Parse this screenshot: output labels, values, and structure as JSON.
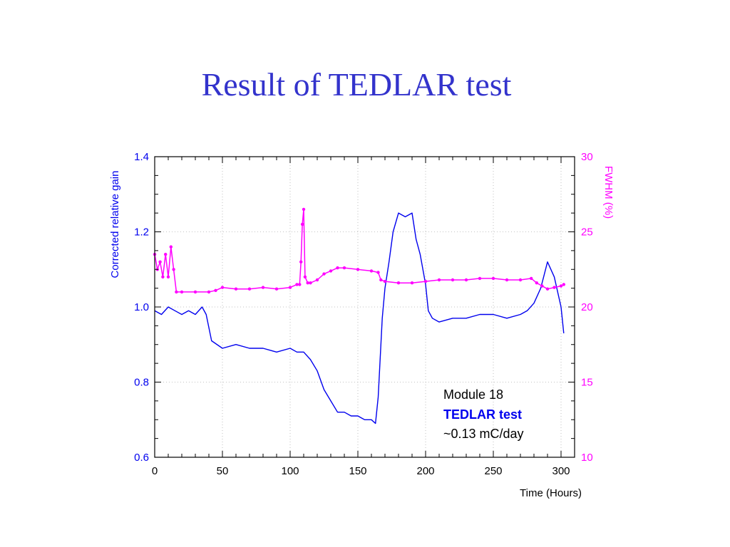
{
  "page": {
    "title": "Result of TEDLAR test"
  },
  "colors": {
    "gain": "#0000ee",
    "fwhm": "#ff00ff",
    "title": "#3333cc",
    "axis": "#000000",
    "grid": "#b0b0b0"
  },
  "chart_data": {
    "type": "line",
    "title": "",
    "xlabel": "Time (Hours)",
    "ylabel_left": "Corrected relative gain",
    "ylabel_right": "FWHM (%)",
    "xlim": [
      0,
      310
    ],
    "ylim_left": [
      0.6,
      1.4
    ],
    "ylim_right": [
      10,
      30
    ],
    "x_ticks": [
      0,
      50,
      100,
      150,
      200,
      250,
      300
    ],
    "y_ticks_left": [
      "0.6",
      "0.8",
      "1.0",
      "1.2",
      "1.4"
    ],
    "y_ticks_right": [
      "10",
      "15",
      "20",
      "25",
      "30"
    ],
    "grid": true,
    "annotation": {
      "line1": "Module 18",
      "line2": "TEDLAR test",
      "line3": "~0.13 mC/day"
    },
    "series": [
      {
        "axis": "left",
        "color": "#0000ee",
        "x": [
          0,
          5,
          10,
          15,
          20,
          25,
          30,
          35,
          38,
          42,
          50,
          60,
          70,
          80,
          90,
          100,
          105,
          110,
          115,
          120,
          125,
          130,
          135,
          140,
          145,
          150,
          155,
          160,
          163,
          165,
          168,
          170,
          173,
          176,
          180,
          185,
          190,
          193,
          196,
          200,
          202,
          205,
          210,
          220,
          230,
          240,
          250,
          260,
          270,
          275,
          280,
          285,
          290,
          295,
          300,
          302
        ],
        "y": [
          0.99,
          0.98,
          1.0,
          0.99,
          0.98,
          0.99,
          0.98,
          1.0,
          0.98,
          0.91,
          0.89,
          0.9,
          0.89,
          0.89,
          0.88,
          0.89,
          0.88,
          0.88,
          0.86,
          0.83,
          0.78,
          0.75,
          0.72,
          0.72,
          0.71,
          0.71,
          0.7,
          0.7,
          0.69,
          0.76,
          0.97,
          1.05,
          1.12,
          1.2,
          1.25,
          1.24,
          1.25,
          1.18,
          1.14,
          1.06,
          0.99,
          0.97,
          0.96,
          0.97,
          0.97,
          0.98,
          0.98,
          0.97,
          0.98,
          0.99,
          1.01,
          1.05,
          1.12,
          1.08,
          1.0,
          0.93
        ]
      },
      {
        "axis": "right",
        "color": "#ff00ff",
        "x": [
          0,
          2,
          4,
          6,
          8,
          10,
          12,
          14,
          16,
          20,
          30,
          40,
          45,
          50,
          60,
          70,
          80,
          90,
          100,
          105,
          107,
          108,
          109,
          110,
          111,
          113,
          115,
          120,
          125,
          130,
          135,
          140,
          150,
          160,
          165,
          167,
          170,
          180,
          190,
          200,
          210,
          220,
          230,
          240,
          250,
          260,
          270,
          278,
          282,
          286,
          290,
          295,
          300,
          302
        ],
        "y": [
          23.5,
          22.5,
          23.0,
          22.0,
          23.5,
          22.0,
          24.0,
          22.5,
          21.0,
          21.0,
          21.0,
          21.0,
          21.1,
          21.3,
          21.2,
          21.2,
          21.3,
          21.2,
          21.3,
          21.5,
          21.5,
          23.0,
          25.5,
          26.5,
          22.0,
          21.6,
          21.6,
          21.8,
          22.2,
          22.4,
          22.6,
          22.6,
          22.5,
          22.4,
          22.3,
          21.8,
          21.7,
          21.6,
          21.6,
          21.7,
          21.8,
          21.8,
          21.8,
          21.9,
          21.9,
          21.8,
          21.8,
          21.9,
          21.6,
          21.4,
          21.2,
          21.3,
          21.4,
          21.5
        ]
      }
    ]
  }
}
